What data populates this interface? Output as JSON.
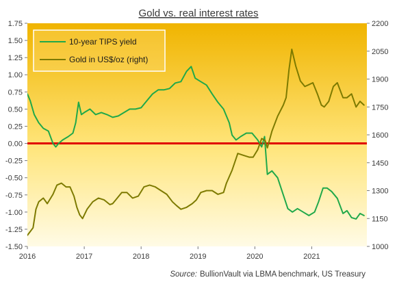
{
  "chart_data": {
    "type": "line",
    "title": "Gold vs. real interest rates",
    "source_label": "Source:",
    "source_text": "BullionVault via LBMA benchmark, US Treasury",
    "x_ticks": [
      "2016",
      "2017",
      "2018",
      "2019",
      "2020",
      "2021"
    ],
    "x_range": [
      2016.0,
      2021.97
    ],
    "y_left": {
      "range": [
        -1.5,
        1.75
      ],
      "ticks": [
        "-1.50",
        "-1.25",
        "-1.00",
        "-0.75",
        "-0.50",
        "-0.25",
        "0.00",
        "0.25",
        "0.50",
        "0.75",
        "1.00",
        "1.25",
        "1.50",
        "1.75"
      ]
    },
    "y_right": {
      "range": [
        1000,
        2200
      ],
      "ticks": [
        "1000",
        "1150",
        "1300",
        "1450",
        "1600",
        "1750",
        "1900",
        "2050",
        "2200"
      ]
    },
    "zero_line_color": "#e00000",
    "background_top_color": "#f0b400",
    "background_bottom_color": "#fffbe6",
    "series": [
      {
        "name": "10-year TIPS yield",
        "axis": "left",
        "color": "#1fa84a",
        "x": [
          2016.0,
          2016.05,
          2016.12,
          2016.2,
          2016.28,
          2016.37,
          2016.45,
          2016.5,
          2016.55,
          2016.62,
          2016.72,
          2016.8,
          2016.85,
          2016.9,
          2016.95,
          2017.0,
          2017.1,
          2017.2,
          2017.3,
          2017.4,
          2017.5,
          2017.6,
          2017.7,
          2017.8,
          2017.9,
          2018.0,
          2018.1,
          2018.2,
          2018.3,
          2018.4,
          2018.5,
          2018.6,
          2018.7,
          2018.8,
          2018.88,
          2018.95,
          2019.05,
          2019.15,
          2019.25,
          2019.35,
          2019.45,
          2019.55,
          2019.6,
          2019.67,
          2019.75,
          2019.85,
          2019.95,
          2020.05,
          2020.12,
          2020.17,
          2020.22,
          2020.3,
          2020.4,
          2020.5,
          2020.58,
          2020.66,
          2020.75,
          2020.85,
          2020.95,
          2021.05,
          2021.12,
          2021.2,
          2021.27,
          2021.35,
          2021.45,
          2021.55,
          2021.62,
          2021.7,
          2021.78,
          2021.85,
          2021.92
        ],
        "values": [
          0.72,
          0.62,
          0.42,
          0.3,
          0.22,
          0.18,
          0.0,
          -0.05,
          0.0,
          0.05,
          0.1,
          0.15,
          0.3,
          0.6,
          0.42,
          0.45,
          0.5,
          0.42,
          0.45,
          0.42,
          0.38,
          0.4,
          0.45,
          0.5,
          0.5,
          0.52,
          0.62,
          0.72,
          0.78,
          0.78,
          0.8,
          0.88,
          0.9,
          1.05,
          1.12,
          0.95,
          0.9,
          0.85,
          0.72,
          0.6,
          0.5,
          0.3,
          0.12,
          0.05,
          0.1,
          0.15,
          0.15,
          0.05,
          -0.05,
          0.1,
          -0.45,
          -0.4,
          -0.5,
          -0.75,
          -0.95,
          -1.0,
          -0.95,
          -1.0,
          -1.05,
          -1.0,
          -0.85,
          -0.65,
          -0.65,
          -0.7,
          -0.8,
          -1.02,
          -0.98,
          -1.08,
          -1.1,
          -1.02,
          -1.05
        ]
      },
      {
        "name": "Gold in US$/oz (right)",
        "axis": "right",
        "color": "#7d7a00",
        "x": [
          2016.0,
          2016.05,
          2016.1,
          2016.15,
          2016.2,
          2016.28,
          2016.35,
          2016.45,
          2016.52,
          2016.6,
          2016.68,
          2016.75,
          2016.82,
          2016.87,
          2016.92,
          2016.97,
          2017.05,
          2017.15,
          2017.25,
          2017.35,
          2017.45,
          2017.5,
          2017.58,
          2017.66,
          2017.75,
          2017.85,
          2017.95,
          2018.05,
          2018.15,
          2018.25,
          2018.35,
          2018.45,
          2018.55,
          2018.62,
          2018.7,
          2018.8,
          2018.9,
          2018.97,
          2019.05,
          2019.15,
          2019.25,
          2019.35,
          2019.45,
          2019.5,
          2019.6,
          2019.7,
          2019.8,
          2019.9,
          2019.97,
          2020.05,
          2020.12,
          2020.18,
          2020.22,
          2020.3,
          2020.4,
          2020.5,
          2020.55,
          2020.6,
          2020.65,
          2020.72,
          2020.8,
          2020.88,
          2020.95,
          2021.02,
          2021.1,
          2021.17,
          2021.22,
          2021.3,
          2021.38,
          2021.45,
          2021.55,
          2021.62,
          2021.7,
          2021.78,
          2021.85,
          2021.92
        ],
        "values": [
          1060,
          1080,
          1100,
          1200,
          1240,
          1260,
          1230,
          1280,
          1330,
          1340,
          1320,
          1320,
          1270,
          1210,
          1170,
          1150,
          1200,
          1240,
          1260,
          1250,
          1225,
          1230,
          1260,
          1290,
          1290,
          1260,
          1270,
          1320,
          1330,
          1320,
          1300,
          1280,
          1240,
          1220,
          1200,
          1210,
          1230,
          1250,
          1290,
          1300,
          1300,
          1280,
          1290,
          1340,
          1410,
          1500,
          1490,
          1480,
          1480,
          1520,
          1580,
          1570,
          1530,
          1620,
          1700,
          1760,
          1800,
          1950,
          2060,
          1970,
          1890,
          1860,
          1870,
          1880,
          1820,
          1760,
          1750,
          1780,
          1860,
          1880,
          1800,
          1800,
          1820,
          1750,
          1780,
          1760
        ]
      }
    ],
    "legend": {
      "position": "top-left"
    }
  }
}
